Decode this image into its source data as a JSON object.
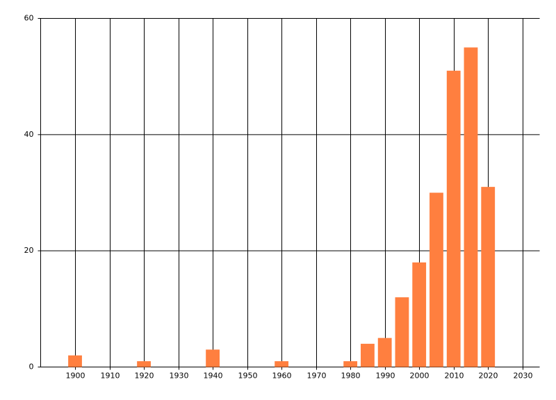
{
  "chart_data": {
    "type": "bar",
    "x": [
      1900,
      1920,
      1940,
      1960,
      1980,
      1985,
      1990,
      1995,
      2000,
      2005,
      2010,
      2015,
      2020
    ],
    "values": [
      2,
      1,
      3,
      1,
      1,
      4,
      5,
      12,
      18,
      30,
      51,
      55,
      31
    ],
    "color": "#ff7f3f",
    "xlim": [
      1890,
      2035
    ],
    "xticks": [
      1900,
      1910,
      1920,
      1930,
      1940,
      1950,
      1960,
      1970,
      1980,
      1990,
      2000,
      2010,
      2020,
      2030
    ],
    "ylim": [
      0,
      60
    ],
    "yticks": [
      0,
      20,
      40,
      60
    ],
    "grid": true
  }
}
